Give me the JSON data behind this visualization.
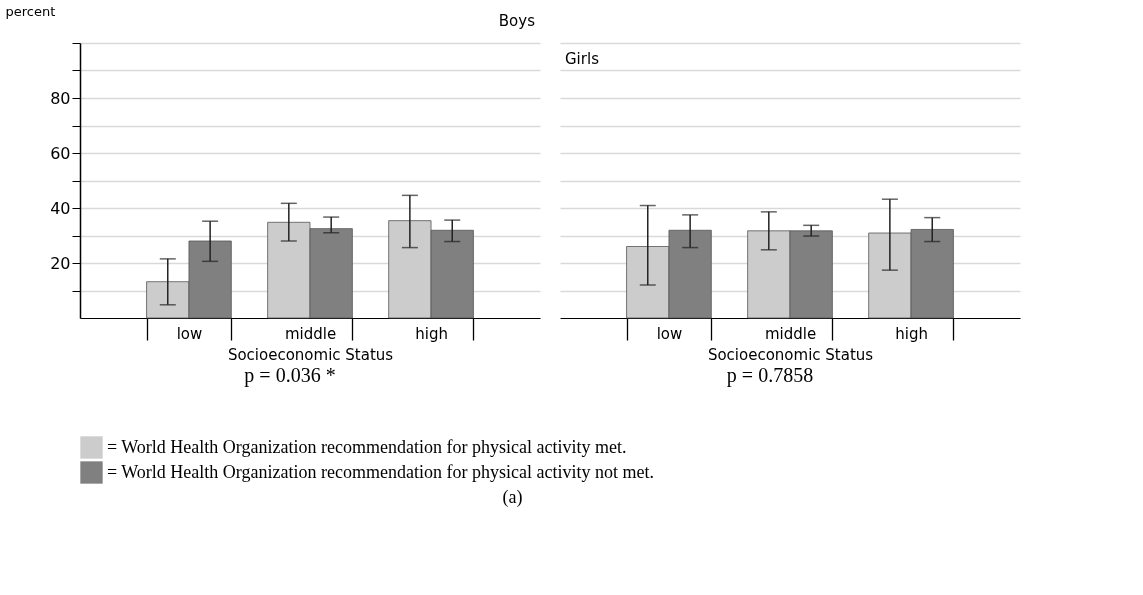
{
  "chart_data": [
    {
      "type": "bar",
      "title": "Boys",
      "xlabel": "Socioeconomic Status",
      "ylabel": "percent",
      "categories": [
        "low",
        "middle",
        "high"
      ],
      "series": [
        {
          "name": "= World Health Organization recommendation for physical activity met.",
          "color": "#cccccc",
          "values": [
            13.2,
            34.8,
            35.4
          ],
          "errors": [
            [
              4.8,
              21.5
            ],
            [
              28.0,
              41.7
            ],
            [
              25.6,
              44.6
            ]
          ]
        },
        {
          "name": "= World Health Organization recommendation for physical activity not met.",
          "color": "#808080",
          "values": [
            28.0,
            32.5,
            31.9
          ],
          "errors": [
            [
              20.6,
              35.2
            ],
            [
              31.0,
              36.7
            ],
            [
              27.8,
              35.6
            ]
          ]
        }
      ],
      "ylim": [
        0,
        100
      ],
      "yticks": [
        {
          "value": 10,
          "label": null
        },
        20,
        {
          "value": 30,
          "label": null
        },
        40,
        {
          "value": 50,
          "label": null
        },
        60,
        {
          "value": 70,
          "label": null
        },
        80,
        {
          "value": 90,
          "label": null
        },
        {
          "value": 100,
          "label": null
        }
      ],
      "grid": "y",
      "legend": "bottom",
      "annotations": [
        "p = 0.036 *",
        "(a)"
      ]
    },
    {
      "type": "bar",
      "title": "Girls",
      "xlabel": "Socioeconomic Status",
      "categories": [
        "low",
        "middle",
        "high"
      ],
      "series": [
        {
          "name": "= World Health Organization recommendation for physical activity met.",
          "color": "#cccccc",
          "values": [
            26.0,
            31.7,
            30.9
          ],
          "errors": [
            [
              12.0,
              40.9
            ],
            [
              24.8,
              38.6
            ],
            [
              17.4,
              43.2
            ]
          ]
        },
        {
          "name": "= World Health Organization recommendation for physical activity not met.",
          "color": "#808080",
          "values": [
            31.9,
            31.7,
            32.2
          ],
          "errors": [
            [
              25.6,
              37.5
            ],
            [
              29.8,
              33.7
            ],
            [
              27.8,
              36.5
            ]
          ]
        }
      ],
      "ylim": [
        0,
        100
      ],
      "yticks": [
        {
          "value": 10,
          "label": null
        },
        20,
        {
          "value": 30,
          "label": null
        },
        40,
        {
          "value": 50,
          "label": null
        },
        60,
        {
          "value": 70,
          "label": null
        },
        80,
        {
          "value": 90,
          "label": null
        },
        {
          "value": 100,
          "label": null
        }
      ],
      "grid": "y",
      "tick_labels": "x",
      "annotations": [
        "p = 0.7858"
      ]
    }
  ]
}
